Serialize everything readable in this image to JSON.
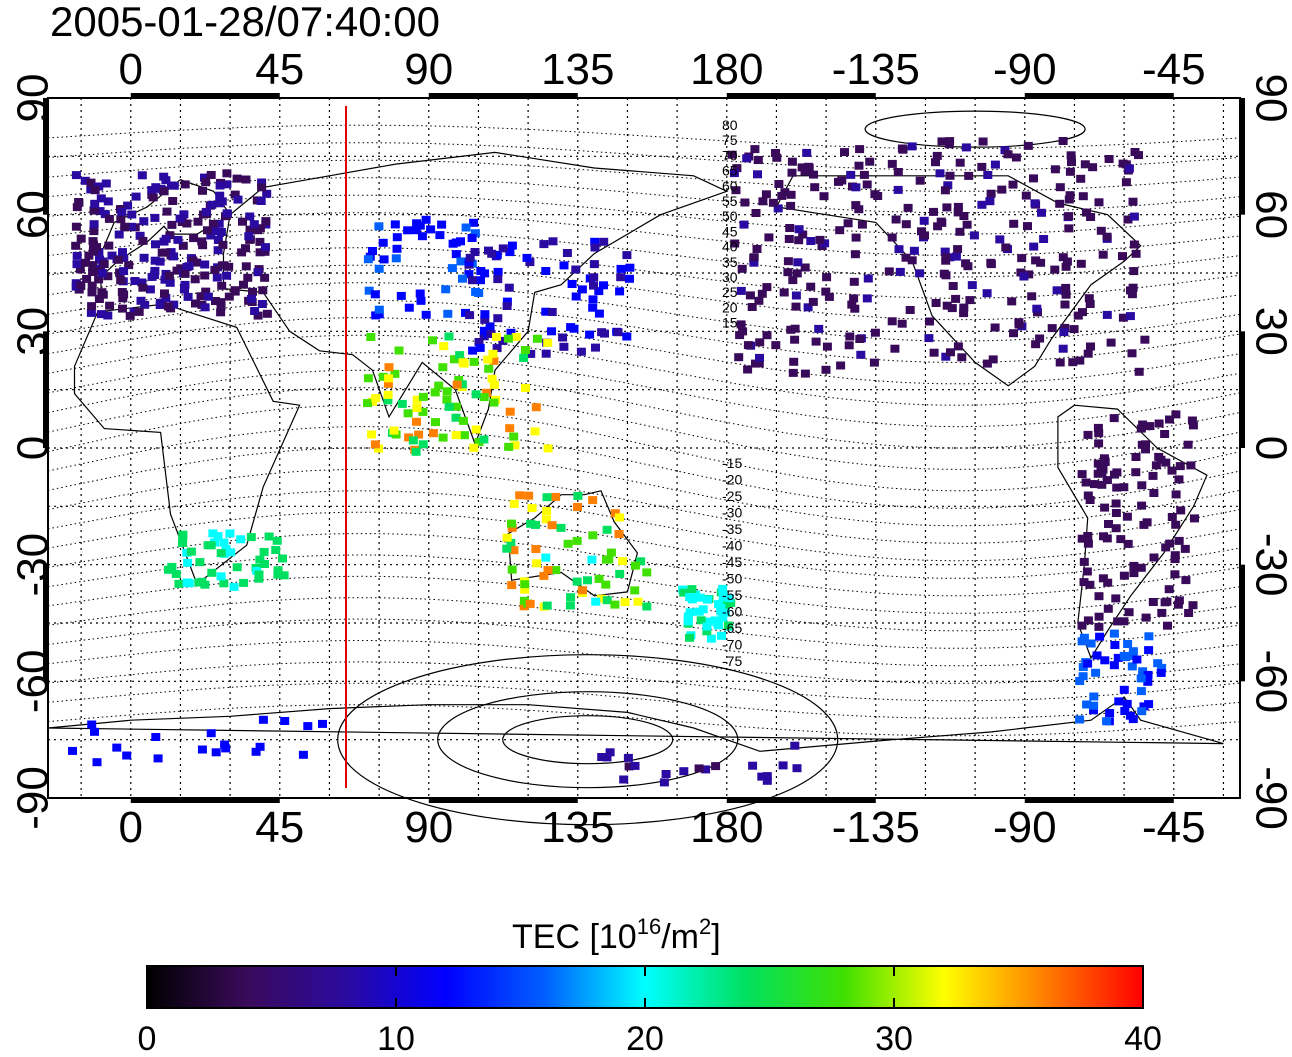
{
  "map": {
    "title": "2005-01-28/07:40:00",
    "top_lon_ticks": [
      "0",
      "45",
      "90",
      "135",
      "180",
      "-135",
      "-90",
      "-45"
    ],
    "bottom_lon_ticks": [
      "0",
      "45",
      "90",
      "135",
      "180",
      "-135",
      "-90",
      "-45"
    ],
    "lat_ticks": [
      "90",
      "60",
      "30",
      "0",
      "-30",
      "-60",
      "-90"
    ],
    "terminator_longitude": 65,
    "contour_labels_north": [
      "80",
      "75",
      "70",
      "65",
      "60",
      "55",
      "50",
      "45",
      "40",
      "35",
      "30",
      "25",
      "20",
      "15"
    ],
    "contour_labels_south": [
      "-15",
      "-20",
      "-25",
      "-30",
      "-35",
      "-40",
      "-45",
      "-50",
      "-55",
      "-60",
      "-65",
      "-70",
      "-75"
    ],
    "terminator_color": "#e00000"
  },
  "colorbar": {
    "label_main": "TEC  [10",
    "label_sup1": "16",
    "label_mid": "/m",
    "label_sup2": "2",
    "label_end": "]",
    "ticks": [
      "0",
      "10",
      "20",
      "30",
      "40"
    ],
    "range": [
      0,
      40
    ],
    "stops": [
      "#000000",
      "#3a0a5a",
      "#2a0aa0",
      "#0000ff",
      "#0060ff",
      "#00ffff",
      "#00e060",
      "#40e000",
      "#ffff00",
      "#ff8000",
      "#ff0000"
    ]
  }
}
